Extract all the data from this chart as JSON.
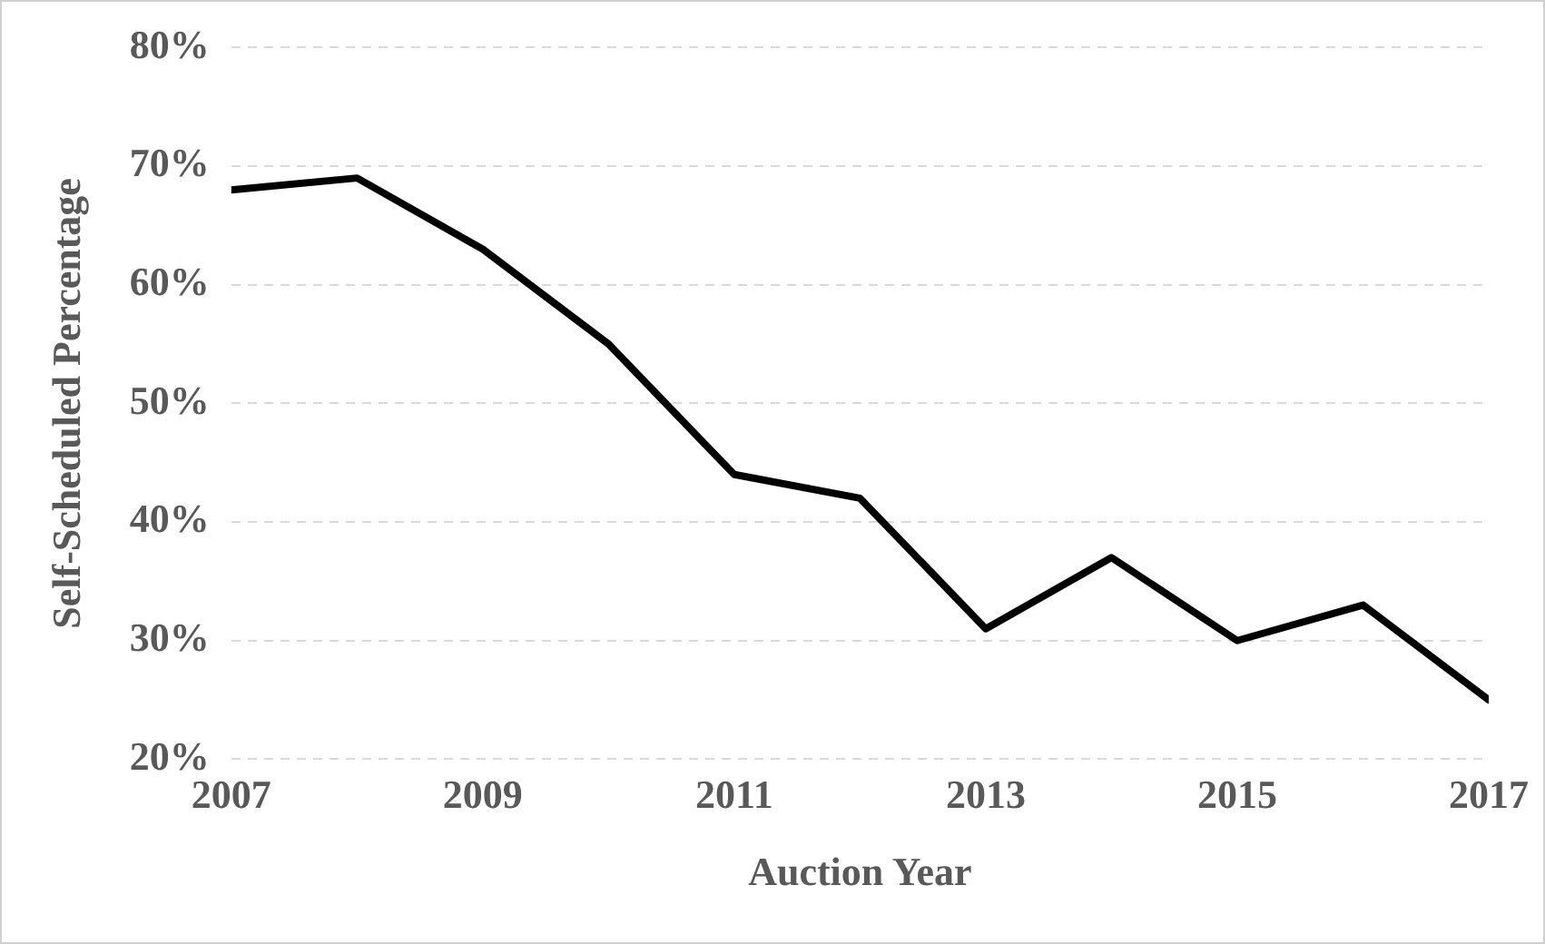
{
  "chart_data": {
    "type": "line",
    "xlabel": "Auction Year",
    "ylabel": "Self-Scheduled Percentage",
    "x": [
      2007,
      2008,
      2009,
      2010,
      2011,
      2012,
      2013,
      2014,
      2015,
      2016,
      2017
    ],
    "series": [
      {
        "color": "#000000",
        "values": [
          68,
          69,
          63,
          55,
          44,
          42,
          31,
          37,
          30,
          33,
          25
        ]
      }
    ],
    "xlim": [
      2007,
      2017
    ],
    "xticks": [
      2007,
      2009,
      2011,
      2013,
      2015,
      2017
    ],
    "ylim": [
      20,
      80
    ],
    "yticks": [
      {
        "value": 20,
        "label": "20%"
      },
      {
        "value": 30,
        "label": "30%"
      },
      {
        "value": 40,
        "label": "40%"
      },
      {
        "value": 50,
        "label": "50%"
      },
      {
        "value": 60,
        "label": "60%"
      },
      {
        "value": 70,
        "label": "70%"
      },
      {
        "value": 80,
        "label": "80%"
      }
    ],
    "grid": "y",
    "legend": false,
    "marker": "none",
    "line_style": "solid"
  }
}
